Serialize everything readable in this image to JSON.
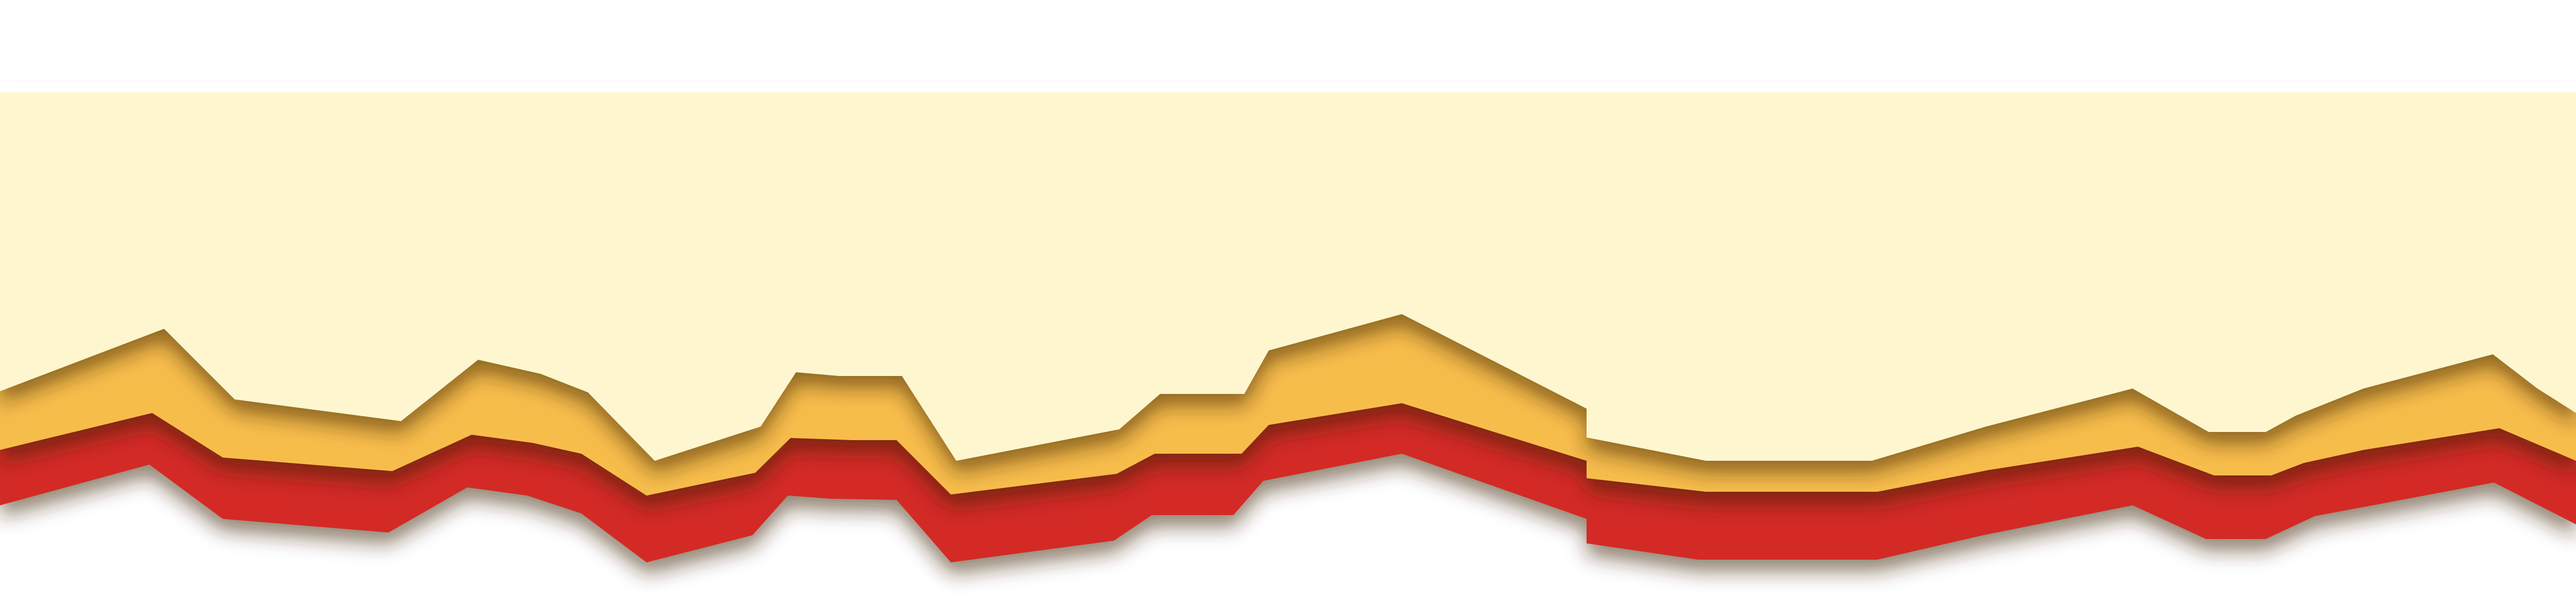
{
  "colors": {
    "background": "#ffffff",
    "cream": "#fdf6cf",
    "gold": "#f7bd4c",
    "red": "#d32a28",
    "shadow": "#3a2206"
  }
}
